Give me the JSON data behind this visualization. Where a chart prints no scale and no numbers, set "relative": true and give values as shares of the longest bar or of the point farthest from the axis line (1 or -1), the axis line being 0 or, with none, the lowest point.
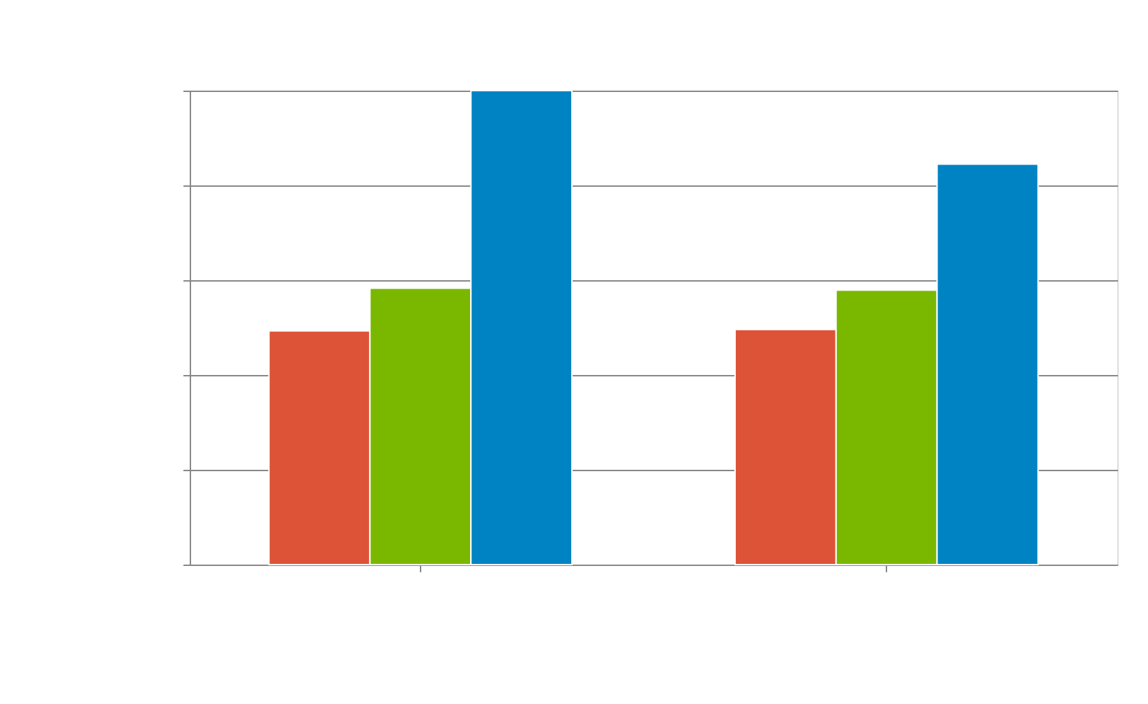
{
  "chart_data": {
    "type": "bar",
    "relative": true,
    "categories": [
      null,
      null
    ],
    "series": [
      {
        "color": "#dd5337",
        "values": [
          0.493,
          0.496
        ]
      },
      {
        "color": "#7ab800",
        "values": [
          0.583,
          0.579
        ]
      },
      {
        "color": "#0083c3",
        "values": [
          1,
          0.845
        ]
      }
    ],
    "grid": "y"
  }
}
